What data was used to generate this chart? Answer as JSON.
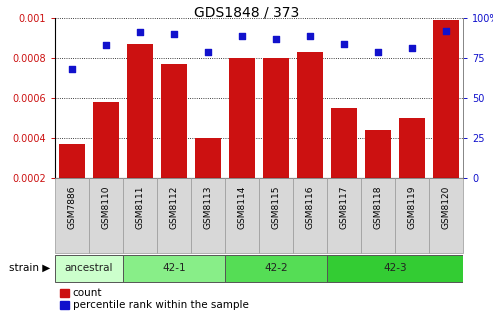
{
  "title": "GDS1848 / 373",
  "samples": [
    "GSM7886",
    "GSM8110",
    "GSM8111",
    "GSM8112",
    "GSM8113",
    "GSM8114",
    "GSM8115",
    "GSM8116",
    "GSM8117",
    "GSM8118",
    "GSM8119",
    "GSM8120"
  ],
  "counts": [
    0.00037,
    0.00058,
    0.00087,
    0.00077,
    0.0004,
    0.0008,
    0.0008,
    0.00083,
    0.00055,
    0.00044,
    0.0005,
    0.00099
  ],
  "percentiles": [
    68,
    83,
    91,
    90,
    79,
    89,
    87,
    89,
    84,
    79,
    81,
    92
  ],
  "ylim_left": [
    0.0002,
    0.001
  ],
  "ylim_right": [
    0,
    100
  ],
  "yticks_left": [
    0.0002,
    0.0004,
    0.0006,
    0.0008,
    0.001
  ],
  "yticks_right": [
    0,
    25,
    50,
    75,
    100
  ],
  "bar_color": "#cc1111",
  "dot_color": "#1111cc",
  "tick_bg_color": "#d8d8d8",
  "tick_edge_color": "#999999",
  "strain_groups": [
    {
      "label": "ancestral",
      "start": 0,
      "end": 1,
      "color": "#ccffcc"
    },
    {
      "label": "42-1",
      "start": 2,
      "end": 4,
      "color": "#88ee88"
    },
    {
      "label": "42-2",
      "start": 5,
      "end": 7,
      "color": "#55dd55"
    },
    {
      "label": "42-3",
      "start": 8,
      "end": 11,
      "color": "#33cc33"
    }
  ],
  "strain_label": "strain",
  "legend_count_label": "count",
  "legend_pct_label": "percentile rank within the sample",
  "bar_width": 0.75,
  "figsize": [
    4.93,
    3.36
  ],
  "dpi": 100
}
